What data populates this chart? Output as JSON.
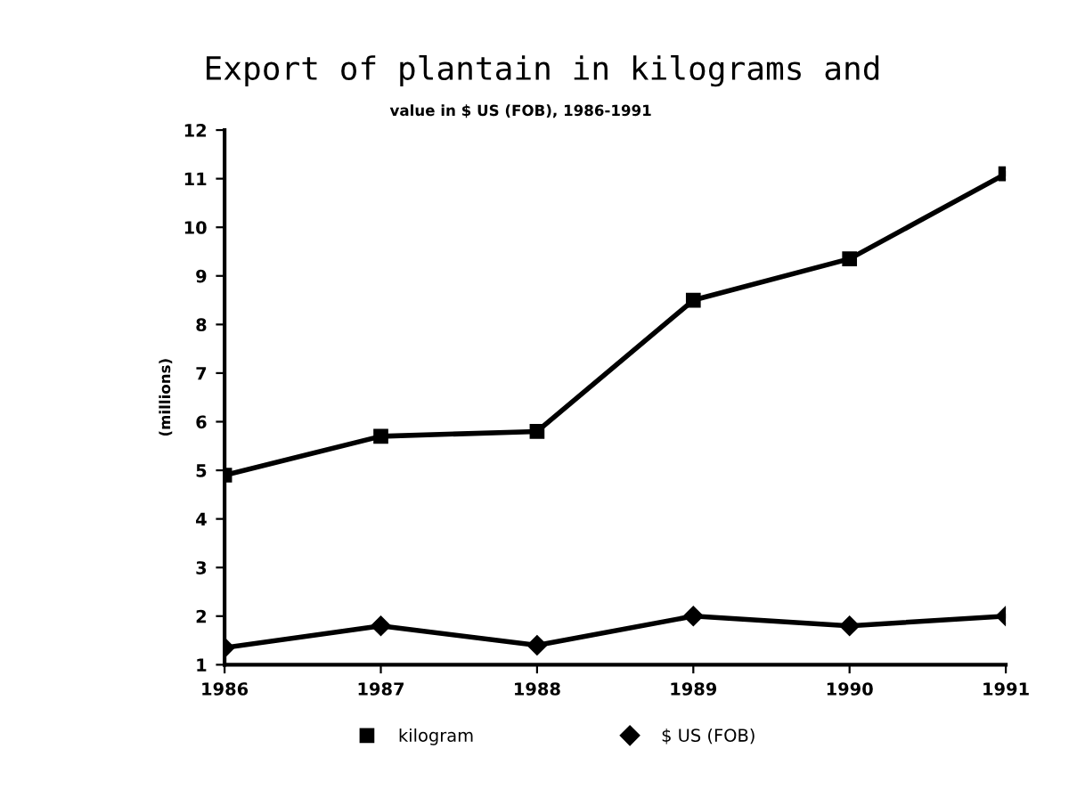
{
  "chart_data": {
    "type": "line",
    "title": "Export of plantain in kilograms and",
    "subtitle": "value in $ US (FOB), 1986-1991",
    "ylabel": "(millions)",
    "categories": [
      "1986",
      "1987",
      "1988",
      "1989",
      "1990",
      "1991"
    ],
    "series": [
      {
        "name": "kilogram",
        "color": "#000000",
        "marker": "square",
        "values": [
          4.9,
          5.7,
          5.8,
          8.5,
          9.35,
          11.1
        ]
      },
      {
        "name": "$ US (FOB)",
        "color": "#000000",
        "marker": "diamond",
        "values": [
          1.35,
          1.8,
          1.4,
          2.0,
          1.8,
          2.0
        ]
      }
    ],
    "ylim": [
      1,
      12
    ],
    "yticks": [
      1,
      2,
      3,
      4,
      5,
      6,
      7,
      8,
      9,
      10,
      11,
      12
    ],
    "grid": false,
    "legend": "bottom",
    "line_style": "solid"
  }
}
